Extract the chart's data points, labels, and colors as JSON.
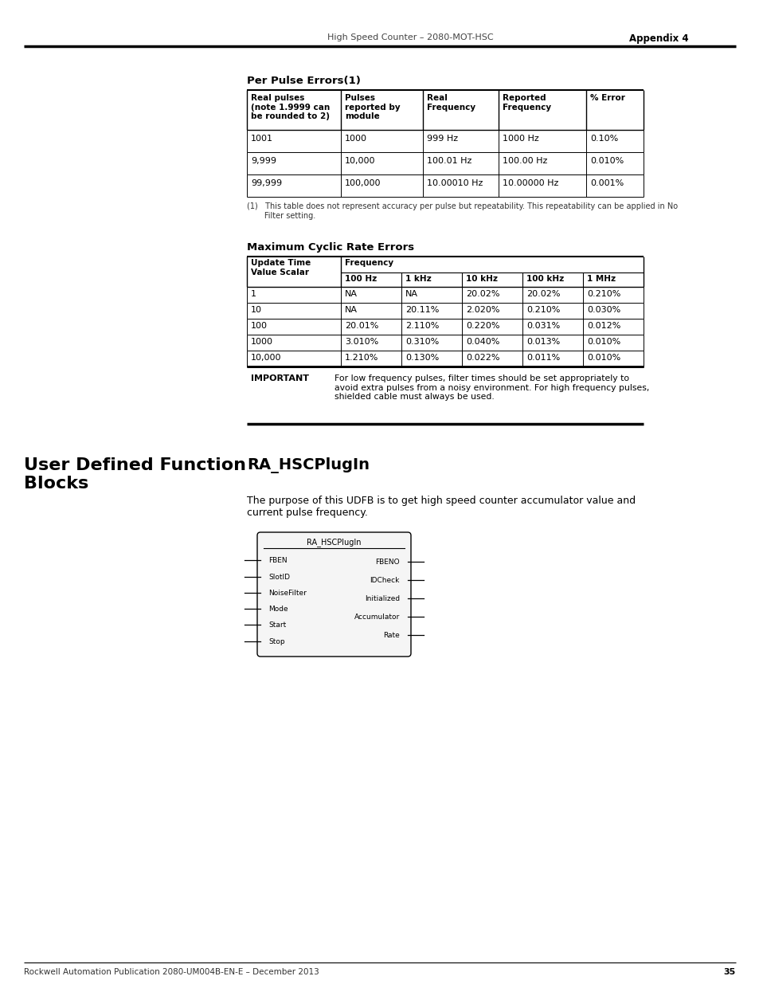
{
  "page_header_left": "High Speed Counter – 2080-MOT-HSC",
  "page_header_right": "Appendix 4",
  "page_number": "35",
  "page_footer": "Rockwell Automation Publication 2080-UM004B-EN-E – December 2013",
  "section1_title": "Per Pulse Errors(1)",
  "table1_headers": [
    "Real pulses\n(note 1.9999 can\nbe rounded to 2)",
    "Pulses\nreported by\nmodule",
    "Real\nFrequency",
    "Reported\nFrequency",
    "% Error"
  ],
  "table1_rows": [
    [
      "1001",
      "1000",
      "999 Hz",
      "1000 Hz",
      "0.10%"
    ],
    [
      "9,999",
      "10,000",
      "100.01 Hz",
      "100.00 Hz",
      "0.010%"
    ],
    [
      "99,999",
      "100,000",
      "10.00010 Hz",
      "10.00000 Hz",
      "0.001%"
    ]
  ],
  "table1_footnote": "(1)   This table does not represent accuracy per pulse but repeatability. This repeatability can be applied in No\n       Filter setting.",
  "section2_title": "Maximum Cyclic Rate Errors",
  "table2_col1_header": "Update Time\nValue Scalar",
  "table2_freq_header": "Frequency",
  "table2_freq_subheaders": [
    "100 Hz",
    "1 kHz",
    "10 kHz",
    "100 kHz",
    "1 MHz"
  ],
  "table2_rows": [
    [
      "1",
      "NA",
      "NA",
      "20.02%",
      "20.02%",
      "0.210%"
    ],
    [
      "10",
      "NA",
      "20.11%",
      "2.020%",
      "0.210%",
      "0.030%"
    ],
    [
      "100",
      "20.01%",
      "2.110%",
      "0.220%",
      "0.031%",
      "0.012%"
    ],
    [
      "1000",
      "3.010%",
      "0.310%",
      "0.040%",
      "0.013%",
      "0.010%"
    ],
    [
      "10,000",
      "1.210%",
      "0.130%",
      "0.022%",
      "0.011%",
      "0.010%"
    ]
  ],
  "important_label": "IMPORTANT",
  "important_text": "For low frequency pulses, filter times should be set appropriately to\navoid extra pulses from a noisy environment. For high frequency pulses,\nshielded cable must always be used.",
  "left_heading": "User Defined Function\nBlocks",
  "right_heading": "RA_HSCPlugIn",
  "description": "The purpose of this UDFB is to get high speed counter accumulator value and\ncurrent pulse frequency.",
  "diagram_title": "RA_HSCPlugIn",
  "diagram_inputs": [
    "FBEN",
    "SlotID",
    "NoiseFilter",
    "Mode",
    "Start",
    "Stop"
  ],
  "diagram_outputs": [
    "FBENO",
    "IDCheck",
    "Initialized",
    "Accumulator",
    "Rate"
  ],
  "bg_color": "#ffffff",
  "text_color": "#000000"
}
